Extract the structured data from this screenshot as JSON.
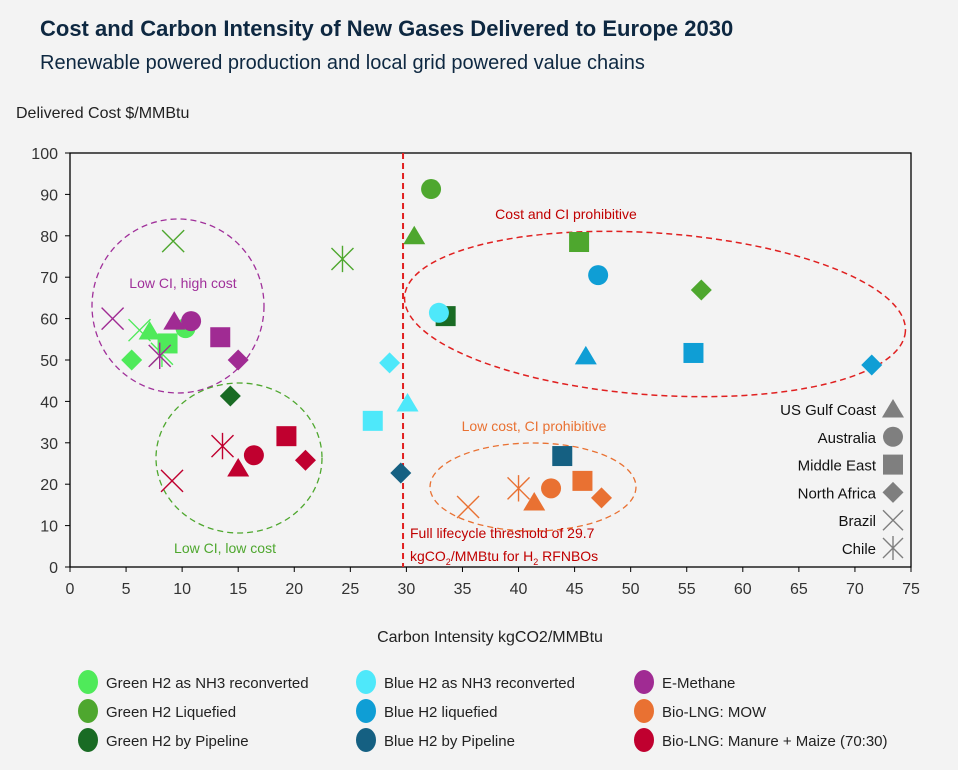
{
  "chart_data": {
    "type": "scatter",
    "title": "Cost and Carbon Intensity of New Gases Delivered to Europe 2030",
    "subtitle": "Renewable powered production and local grid powered value chains",
    "xlabel": "Carbon Intensity kgCO2/MMBtu",
    "ylabel": "Delivered Cost $/MMBtu",
    "xlim": [
      0,
      75
    ],
    "ylim": [
      0,
      100
    ],
    "xticks": [
      0,
      5,
      10,
      15,
      20,
      25,
      30,
      35,
      40,
      45,
      50,
      55,
      60,
      65,
      70,
      75
    ],
    "yticks": [
      0,
      10,
      20,
      30,
      40,
      50,
      60,
      70,
      80,
      90,
      100
    ],
    "grid": false,
    "threshold": {
      "x": 29.7,
      "label_line1": "Full lifecycle threshold of 29.7",
      "label_line2_a": "kgCO",
      "label_line2_sub": "2",
      "label_line2_b": "/MMBtu for H",
      "label_line2_sub2": "2",
      "label_line2_c": " RFNBOs",
      "color": "#e02020"
    },
    "annotations": [
      {
        "text": "Low CI, high cost",
        "color": "#a0309a"
      },
      {
        "text": "Low CI, low cost",
        "color": "#4ea72e"
      },
      {
        "text": "Cost and CI prohibitive",
        "color": "#c00000"
      },
      {
        "text": "Low cost, CI prohibitive",
        "color": "#e97132"
      }
    ],
    "shape_legend": [
      {
        "label": "US Gulf Coast",
        "shape": "triangle"
      },
      {
        "label": "Australia",
        "shape": "circle"
      },
      {
        "label": "Middle East",
        "shape": "square"
      },
      {
        "label": "North Africa",
        "shape": "diamond"
      },
      {
        "label": "Brazil",
        "shape": "x"
      },
      {
        "label": "Chile",
        "shape": "asterisk"
      }
    ],
    "legend_placement": "bottom",
    "series": [
      {
        "name": "Green H2 as NH3 reconverted",
        "color": "#4fea5a",
        "points": [
          {
            "region": "US Gulf Coast",
            "x": 7.1,
            "y": 57
          },
          {
            "region": "Australia",
            "x": 10.3,
            "y": 57.7
          },
          {
            "region": "Middle East",
            "x": 8.7,
            "y": 54
          },
          {
            "region": "North Africa",
            "x": 5.5,
            "y": 50
          },
          {
            "region": "Brazil",
            "x": 6.2,
            "y": 57.2
          },
          {
            "region": "Chile",
            "x": 8.2,
            "y": 51.5
          }
        ]
      },
      {
        "name": "Green H2 Liquefied",
        "color": "#4ea72e",
        "points": [
          {
            "region": "US Gulf Coast",
            "x": 30.7,
            "y": 80
          },
          {
            "region": "Australia",
            "x": 32.2,
            "y": 91.3
          },
          {
            "region": "Middle East",
            "x": 45.4,
            "y": 78.5
          },
          {
            "region": "North Africa",
            "x": 56.3,
            "y": 66.9
          },
          {
            "region": "Brazil",
            "x": 9.2,
            "y": 78.7
          },
          {
            "region": "Chile",
            "x": 24.3,
            "y": 74.4
          }
        ]
      },
      {
        "name": "Green H2 by Pipeline",
        "color": "#196b24",
        "points": [
          {
            "region": "Middle East",
            "x": 33.5,
            "y": 60.6
          },
          {
            "region": "North Africa",
            "x": 14.3,
            "y": 41.3
          }
        ]
      },
      {
        "name": "Blue H2 as NH3 reconverted",
        "color": "#4ee8fa",
        "points": [
          {
            "region": "US Gulf Coast",
            "x": 30.1,
            "y": 39.6
          },
          {
            "region": "Australia",
            "x": 32.9,
            "y": 61.4
          },
          {
            "region": "Middle East",
            "x": 27,
            "y": 35.3
          },
          {
            "region": "North Africa",
            "x": 28.5,
            "y": 49.3
          }
        ]
      },
      {
        "name": "Blue H2 liquefied",
        "color": "#0f9ed5",
        "points": [
          {
            "region": "US Gulf Coast",
            "x": 46,
            "y": 51
          },
          {
            "region": "Australia",
            "x": 47.1,
            "y": 70.5
          },
          {
            "region": "Middle East",
            "x": 55.6,
            "y": 51.7
          },
          {
            "region": "North Africa",
            "x": 71.5,
            "y": 48.8
          }
        ]
      },
      {
        "name": "Blue H2 by Pipeline",
        "color": "#156082",
        "points": [
          {
            "region": "Middle East",
            "x": 43.9,
            "y": 26.8
          },
          {
            "region": "North Africa",
            "x": 29.5,
            "y": 22.7
          }
        ]
      },
      {
        "name": "E-Methane",
        "color": "#a02b93",
        "points": [
          {
            "region": "US Gulf Coast",
            "x": 9.3,
            "y": 59.4
          },
          {
            "region": "Australia",
            "x": 10.8,
            "y": 59.4
          },
          {
            "region": "Middle East",
            "x": 13.4,
            "y": 55.5
          },
          {
            "region": "North Africa",
            "x": 15,
            "y": 50
          },
          {
            "region": "Brazil",
            "x": 3.8,
            "y": 60
          },
          {
            "region": "Chile",
            "x": 8,
            "y": 51
          }
        ]
      },
      {
        "name": "Bio-LNG: MOW",
        "color": "#e97132",
        "points": [
          {
            "region": "US Gulf Coast",
            "x": 41.4,
            "y": 15.7
          },
          {
            "region": "Australia",
            "x": 42.9,
            "y": 19
          },
          {
            "region": "Middle East",
            "x": 45.7,
            "y": 20.8
          },
          {
            "region": "North Africa",
            "x": 47.4,
            "y": 16.7
          },
          {
            "region": "Brazil",
            "x": 35.5,
            "y": 14.5
          },
          {
            "region": "Chile",
            "x": 40,
            "y": 19
          }
        ]
      },
      {
        "name": "Bio-LNG: Manure + Maize (70:30)",
        "color": "#c0002f",
        "points": [
          {
            "region": "US Gulf Coast",
            "x": 15,
            "y": 23.9
          },
          {
            "region": "Australia",
            "x": 16.4,
            "y": 27
          },
          {
            "region": "Middle East",
            "x": 19.3,
            "y": 31.6
          },
          {
            "region": "North Africa",
            "x": 21,
            "y": 25.8
          },
          {
            "region": "Brazil",
            "x": 9.1,
            "y": 20.8
          },
          {
            "region": "Chile",
            "x": 13.6,
            "y": 29.2
          }
        ]
      }
    ]
  }
}
